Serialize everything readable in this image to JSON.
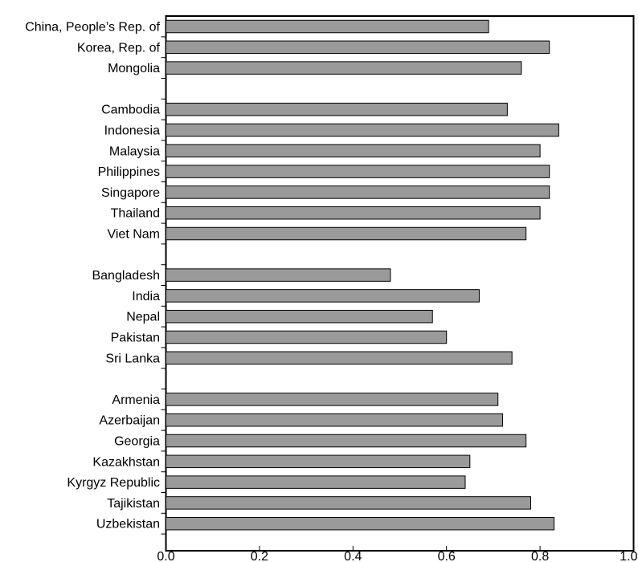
{
  "chart_data": {
    "type": "bar",
    "orientation": "horizontal",
    "title": "",
    "xlabel": "",
    "ylabel": "",
    "xlim": [
      0,
      1.0
    ],
    "x_ticks": [
      "0.0",
      "0.2",
      "0.4",
      "0.6",
      "0.8",
      "1.0"
    ],
    "grid": false,
    "bar_color": "#9a9a9a",
    "groups": [
      {
        "categories": [
          "China, People’s Rep. of",
          "Korea, Rep. of",
          "Mongolia"
        ],
        "values": [
          0.69,
          0.82,
          0.76
        ]
      },
      {
        "categories": [
          "Cambodia",
          "Indonesia",
          "Malaysia",
          "Philippines",
          "Singapore",
          "Thailand",
          "Viet Nam"
        ],
        "values": [
          0.73,
          0.84,
          0.8,
          0.82,
          0.82,
          0.8,
          0.77
        ]
      },
      {
        "categories": [
          "Bangladesh",
          "India",
          "Nepal",
          "Pakistan",
          "Sri Lanka"
        ],
        "values": [
          0.48,
          0.67,
          0.57,
          0.6,
          0.74
        ]
      },
      {
        "categories": [
          "Armenia",
          "Azerbaijan",
          "Georgia",
          "Kazakhstan",
          "Kyrgyz Republic",
          "Tajikistan",
          "Uzbekistan"
        ],
        "values": [
          0.71,
          0.72,
          0.77,
          0.65,
          0.64,
          0.78,
          0.83
        ]
      }
    ]
  }
}
